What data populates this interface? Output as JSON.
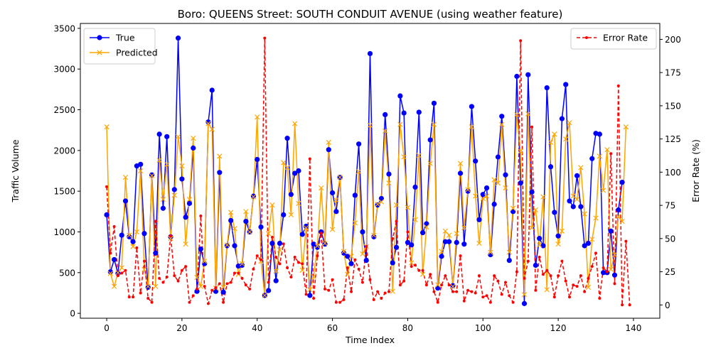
{
  "chart_data": {
    "type": "line",
    "title": "Boro: QUEENS Street: SOUTH CONDUIT AVENUE (using weather feature)",
    "xlabel": "Time Index",
    "ylabel": "Traffic Volume",
    "y2label": "Error Rate (%)",
    "xlim": [
      -7,
      147
    ],
    "ylim": [
      -60,
      3560
    ],
    "y2lim": [
      -10,
      212
    ],
    "x_ticks": [
      0,
      20,
      40,
      60,
      80,
      100,
      120,
      140
    ],
    "y_ticks": [
      0,
      500,
      1000,
      1500,
      2000,
      2500,
      3000,
      3500
    ],
    "y2_ticks": [
      0,
      25,
      50,
      75,
      100,
      125,
      150,
      175,
      200
    ],
    "grid": false,
    "legend_left": {
      "position": "upper-left",
      "entries": [
        "True",
        "Predicted"
      ]
    },
    "legend_right": {
      "position": "upper-right",
      "entries": [
        "Error Rate"
      ]
    },
    "series": [
      {
        "name": "True",
        "color": "#0000ff",
        "marker": "circle",
        "axis": "left",
        "values": [
          1210,
          510,
          660,
          490,
          960,
          1380,
          940,
          880,
          1810,
          1830,
          980,
          320,
          1700,
          740,
          2200,
          1290,
          2170,
          940,
          1520,
          3380,
          1650,
          1180,
          1350,
          2030,
          270,
          790,
          610,
          2350,
          2740,
          270,
          1730,
          260,
          830,
          1140,
          830,
          580,
          590,
          1130,
          1000,
          1440,
          1890,
          1060,
          220,
          280,
          860,
          400,
          860,
          1210,
          2150,
          1460,
          1720,
          1750,
          970,
          1070,
          220,
          850,
          810,
          1000,
          850,
          2010,
          1480,
          1250,
          1670,
          740,
          700,
          610,
          1450,
          2080,
          1000,
          650,
          3190,
          940,
          1330,
          1410,
          2440,
          1710,
          620,
          810,
          2670,
          2460,
          870,
          840,
          1550,
          2470,
          990,
          1100,
          2130,
          2580,
          310,
          700,
          880,
          880,
          340,
          870,
          1720,
          850,
          1500,
          2540,
          1870,
          1150,
          1460,
          1540,
          720,
          1340,
          1920,
          2420,
          1700,
          650,
          1250,
          2910,
          1600,
          120,
          2930,
          1490,
          590,
          920,
          830,
          2770,
          1800,
          1240,
          950,
          2390,
          2810,
          1380,
          1310,
          1690,
          1310,
          830,
          860,
          1900,
          2210,
          2200,
          500,
          500,
          1010,
          470,
          1270,
          1610
        ]
      },
      {
        "name": "Predicted",
        "color": "#ffa500",
        "marker": "x",
        "axis": "left",
        "values": [
          2290,
          490,
          330,
          500,
          560,
          1670,
          960,
          820,
          1000,
          1750,
          540,
          330,
          1690,
          330,
          1880,
          1400,
          1830,
          920,
          1450,
          2170,
          1810,
          850,
          1400,
          2150,
          440,
          330,
          640,
          2330,
          2260,
          310,
          1930,
          320,
          840,
          1240,
          1040,
          480,
          610,
          1250,
          1000,
          1430,
          2410,
          640,
          220,
          980,
          1330,
          520,
          780,
          1850,
          1790,
          1210,
          2330,
          1350,
          530,
          1050,
          290,
          450,
          830,
          1540,
          860,
          2100,
          1030,
          1390,
          1670,
          760,
          480,
          700,
          1110,
          1740,
          730,
          820,
          2310,
          960,
          1340,
          1370,
          2240,
          1600,
          270,
          1330,
          2320,
          1920,
          1300,
          620,
          1150,
          1940,
          480,
          1060,
          1840,
          2320,
          350,
          760,
          1010,
          960,
          330,
          980,
          1840,
          1050,
          1520,
          2290,
          1440,
          860,
          1410,
          1440,
          750,
          1640,
          1600,
          2320,
          1540,
          750,
          1290,
          2440,
          1990,
          230,
          2450,
          1050,
          1270,
          840,
          1430,
          290,
          2100,
          2200,
          850,
          1010,
          2140,
          2340,
          1440,
          1400,
          1790,
          1220,
          320,
          910,
          1170,
          1930,
          1510,
          2010,
          540,
          720,
          1190,
          1130,
          2290
        ]
      },
      {
        "name": "Error Rate",
        "color": "#ff0000",
        "marker": "dot",
        "style": "dashed",
        "axis": "right",
        "values": [
          89,
          39,
          59,
          22,
          24,
          26,
          6,
          6,
          43,
          9,
          33,
          5,
          2,
          63,
          20,
          17,
          21,
          52,
          22,
          18,
          26,
          29,
          2,
          7,
          12,
          67,
          14,
          1,
          11,
          13,
          16,
          2,
          16,
          17,
          24,
          24,
          20,
          15,
          12,
          27,
          37,
          34,
          201,
          17,
          51,
          36,
          31,
          46,
          28,
          21,
          36,
          32,
          31,
          8,
          110,
          5,
          37,
          54,
          12,
          11,
          19,
          2,
          2,
          4,
          28,
          10,
          34,
          27,
          17,
          44,
          19,
          4,
          10,
          5,
          9,
          10,
          50,
          63,
          15,
          18,
          55,
          29,
          30,
          26,
          26,
          15,
          23,
          10,
          2,
          15,
          22,
          15,
          10,
          10,
          37,
          3,
          11,
          10,
          9,
          22,
          6,
          7,
          2,
          22,
          18,
          8,
          17,
          7,
          2,
          25,
          199,
          20,
          33,
          134,
          11,
          36,
          23,
          26,
          22,
          6,
          22,
          33,
          18,
          6,
          15,
          14,
          22,
          10,
          20,
          29,
          39,
          5,
          28,
          25,
          114,
          16,
          165,
          0,
          48,
          0
        ]
      }
    ]
  }
}
